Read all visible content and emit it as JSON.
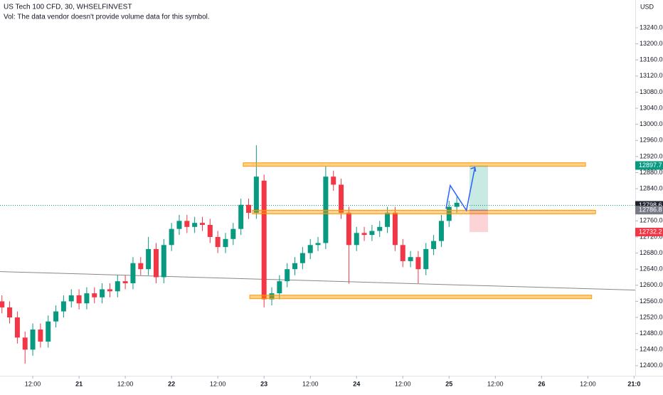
{
  "chart_data": {
    "type": "candlestick",
    "title": "US Tech 100 CFD, 30, WHSELFINVEST",
    "subtitle": "Vol: The data vendor doesn't provide volume data for this symbol.",
    "currency": "USD",
    "up_color": "#089981",
    "down_color": "#f23645",
    "x": [
      4,
      6,
      8,
      10,
      12,
      14,
      16,
      18,
      20,
      22,
      24,
      26,
      28,
      30,
      32,
      34,
      36,
      38,
      40,
      42,
      44,
      46,
      48,
      50,
      52,
      54,
      56,
      58,
      60,
      62,
      64,
      66,
      68,
      70,
      72,
      74,
      76,
      78,
      80,
      82,
      84,
      86,
      88,
      90,
      92,
      94,
      96,
      98,
      100,
      102,
      104,
      106,
      108,
      110,
      112,
      114,
      116,
      118,
      120,
      122
    ],
    "open": [
      12560,
      12545,
      12520,
      12470,
      12440,
      12490,
      12460,
      12510,
      12535,
      12560,
      12575,
      12555,
      12580,
      12570,
      12590,
      12585,
      12610,
      12605,
      12655,
      12640,
      12690,
      12620,
      12700,
      12740,
      12760,
      12745,
      12755,
      12750,
      12720,
      12695,
      12715,
      12740,
      12800,
      12780,
      12860,
      12565,
      12580,
      12610,
      12640,
      12655,
      12680,
      12700,
      12705,
      12870,
      12850,
      12780,
      12700,
      12730,
      12725,
      12735,
      12745,
      12780,
      12700,
      12660,
      12670,
      12640,
      12690,
      12710,
      12760,
      12795
    ],
    "high": [
      12575,
      12560,
      12535,
      12485,
      12505,
      12505,
      12525,
      12550,
      12575,
      12590,
      12590,
      12595,
      12595,
      12605,
      12605,
      12625,
      12625,
      12670,
      12670,
      12720,
      12705,
      12715,
      12755,
      12775,
      12775,
      12770,
      12770,
      12765,
      12735,
      12730,
      12755,
      12815,
      12815,
      12948,
      12875,
      12595,
      12625,
      12655,
      12670,
      12695,
      12715,
      12720,
      12897,
      12885,
      12865,
      12795,
      12745,
      12745,
      12750,
      12760,
      12795,
      12795,
      12715,
      12685,
      12685,
      12705,
      12725,
      12775,
      12810,
      12820
    ],
    "low": [
      12530,
      12505,
      12455,
      12405,
      12425,
      12445,
      12445,
      12495,
      12520,
      12545,
      12540,
      12540,
      12555,
      12555,
      12570,
      12570,
      12590,
      12590,
      12625,
      12625,
      12605,
      12605,
      12685,
      12725,
      12730,
      12730,
      12735,
      12705,
      12680,
      12680,
      12700,
      12725,
      12765,
      12765,
      12545,
      12550,
      12565,
      12595,
      12625,
      12640,
      12665,
      12685,
      12690,
      12835,
      12765,
      12604,
      12685,
      12710,
      12710,
      12720,
      12730,
      12685,
      12645,
      12645,
      12605,
      12625,
      12675,
      12695,
      12745,
      12780
    ],
    "close": [
      12545,
      12520,
      12470,
      12440,
      12490,
      12460,
      12510,
      12535,
      12560,
      12575,
      12555,
      12580,
      12570,
      12590,
      12585,
      12610,
      12605,
      12655,
      12640,
      12690,
      12620,
      12700,
      12740,
      12760,
      12745,
      12755,
      12750,
      12720,
      12695,
      12715,
      12740,
      12800,
      12780,
      12870,
      12565,
      12580,
      12610,
      12640,
      12655,
      12680,
      12700,
      12705,
      12870,
      12850,
      12780,
      12700,
      12730,
      12725,
      12735,
      12745,
      12780,
      12700,
      12660,
      12670,
      12640,
      12690,
      12710,
      12760,
      12795,
      12805
    ],
    "xlim": [
      3.5,
      168.3
    ],
    "xticks": [
      {
        "value": 12,
        "label": "12:00"
      },
      {
        "value": 24,
        "label": "21"
      },
      {
        "value": 36,
        "label": "12:00"
      },
      {
        "value": 48,
        "label": "22"
      },
      {
        "value": 60,
        "label": "12:00"
      },
      {
        "value": 72,
        "label": "23"
      },
      {
        "value": 84,
        "label": "12:00"
      },
      {
        "value": 96,
        "label": "24"
      },
      {
        "value": 108,
        "label": "12:00"
      },
      {
        "value": 120,
        "label": "25"
      },
      {
        "value": 132,
        "label": "12:00"
      },
      {
        "value": 144,
        "label": "26"
      },
      {
        "value": 156,
        "label": "12:00"
      },
      {
        "value": 168,
        "label": "21:0"
      }
    ],
    "ylim": [
      12375,
      13309
    ],
    "yticks": [
      {
        "value": 12400,
        "label": "12400.0"
      },
      {
        "value": 12440,
        "label": "12440.0"
      },
      {
        "value": 12480,
        "label": "12480.0"
      },
      {
        "value": 12520,
        "label": "12520.0"
      },
      {
        "value": 12560,
        "label": "12560.0"
      },
      {
        "value": 12600,
        "label": "12600.0"
      },
      {
        "value": 12640,
        "label": "12640.0"
      },
      {
        "value": 12680,
        "label": "12680.0"
      },
      {
        "value": 12720,
        "label": "12720.0"
      },
      {
        "value": 12760,
        "label": "12760.0"
      },
      {
        "value": 12800,
        "label": "12800.0"
      },
      {
        "value": 12840,
        "label": "12840.0"
      },
      {
        "value": 12880,
        "label": "12880.0"
      },
      {
        "value": 12920,
        "label": "12920.0"
      },
      {
        "value": 12960,
        "label": "12960.0"
      },
      {
        "value": 13000,
        "label": "13000.0"
      },
      {
        "value": 13040,
        "label": "13040.0"
      },
      {
        "value": 13080,
        "label": "13080.0"
      },
      {
        "value": 13120,
        "label": "13120.0"
      },
      {
        "value": 13160,
        "label": "13160.0"
      },
      {
        "value": 13200,
        "label": "13200.0"
      },
      {
        "value": 13240,
        "label": "13240.0"
      }
    ],
    "zones": [
      {
        "price": 12900,
        "x": [
          66.6,
          155.4
        ]
      },
      {
        "price": 12782,
        "x": [
          69,
          158
        ]
      },
      {
        "price": 12571,
        "x": [
          68.3,
          157
        ]
      }
    ],
    "zone_color": "#ff9800",
    "trendline": {
      "x": [
        3.5,
        168.3
      ],
      "y": [
        12634,
        12588
      ],
      "color": "#888888"
    },
    "arrow": {
      "x": [
        119.2,
        120.3,
        124.5,
        126.7
      ],
      "y": [
        12790,
        12848,
        12786,
        12893
      ],
      "color": "#2962ff"
    },
    "position": {
      "x": [
        125.3,
        130.1
      ],
      "target": 12897.7,
      "entry": 12786.8,
      "stop": 12732.2
    },
    "last_price": 12798.6
  }
}
